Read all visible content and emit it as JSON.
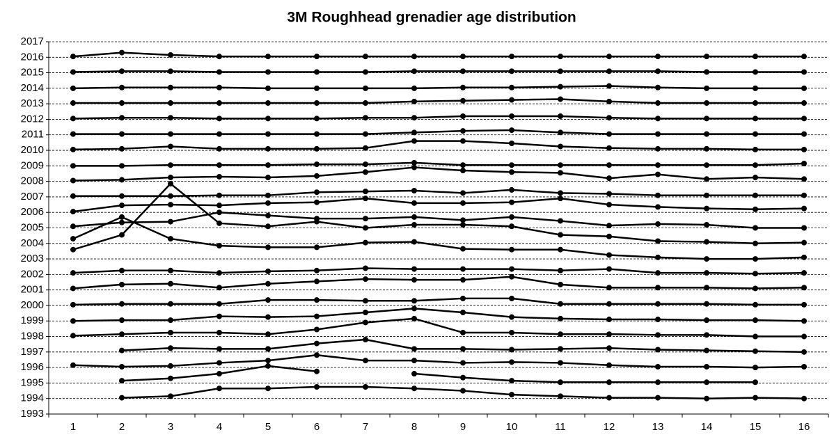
{
  "chart_data": {
    "type": "line",
    "title": "3M Roughhead grenadier age distribution",
    "color": "#000000",
    "grid": true,
    "x": [
      1,
      2,
      3,
      4,
      5,
      6,
      7,
      8,
      9,
      10,
      11,
      12,
      13,
      14,
      15,
      16
    ],
    "xlim": [
      0.5,
      16.5
    ],
    "xticks": [
      1,
      2,
      3,
      4,
      5,
      6,
      7,
      8,
      9,
      10,
      11,
      12,
      13,
      14,
      15,
      16
    ],
    "ylim": [
      1993,
      2017
    ],
    "yticks": [
      1993,
      1994,
      1995,
      1996,
      1997,
      1998,
      1999,
      2000,
      2001,
      2002,
      2003,
      2004,
      2005,
      2006,
      2007,
      2008,
      2009,
      2010,
      2011,
      2012,
      2013,
      2014,
      2015,
      2016,
      2017
    ],
    "series": [
      {
        "values": [
          null,
          1994.05,
          1994.15,
          1994.65,
          1994.65,
          1994.75,
          1994.75,
          1994.65,
          1994.5,
          1994.25,
          1994.15,
          1994.05,
          1994.05,
          1994.0,
          1994.05,
          1994.0
        ]
      },
      {
        "values": [
          null,
          1995.15,
          1995.3,
          1995.6,
          1996.1,
          1995.75,
          null,
          1995.6,
          1995.35,
          1995.15,
          1995.05,
          1995.05,
          1995.05,
          1995.05,
          1995.05,
          null
        ]
      },
      {
        "values": [
          1996.15,
          1996.05,
          1996.1,
          1996.3,
          1996.45,
          1996.8,
          1996.45,
          1996.45,
          1996.3,
          1996.35,
          1996.3,
          1996.15,
          1996.05,
          1996.05,
          1996.0,
          1996.05
        ]
      },
      {
        "values": [
          null,
          1997.1,
          1997.25,
          1997.2,
          1997.2,
          1997.55,
          1997.8,
          1997.2,
          1997.2,
          1997.15,
          1997.2,
          1997.25,
          1997.15,
          1997.1,
          1997.05,
          1997.0
        ]
      },
      {
        "values": [
          1998.05,
          1998.15,
          1998.25,
          1998.25,
          1998.15,
          1998.45,
          1998.9,
          1999.15,
          1998.25,
          1998.25,
          1998.15,
          1998.15,
          1998.1,
          1998.1,
          1998.0,
          1998.0
        ]
      },
      {
        "values": [
          1999.0,
          1999.05,
          1999.05,
          1999.3,
          1999.25,
          1999.3,
          1999.55,
          1999.8,
          1999.55,
          1999.25,
          1999.15,
          1999.1,
          1999.1,
          1999.05,
          1999.05,
          1999.0
        ]
      },
      {
        "values": [
          2000.05,
          2000.1,
          2000.1,
          2000.1,
          2000.35,
          2000.35,
          2000.3,
          2000.3,
          2000.45,
          2000.45,
          2000.1,
          2000.1,
          2000.1,
          2000.1,
          2000.05,
          2000.05
        ]
      },
      {
        "values": [
          2001.1,
          2001.35,
          2001.4,
          2001.15,
          2001.4,
          2001.55,
          2001.7,
          2001.65,
          2001.65,
          2001.85,
          2001.35,
          2001.15,
          2001.15,
          2001.15,
          2001.1,
          2001.15
        ]
      },
      {
        "values": [
          2002.1,
          2002.25,
          2002.25,
          2002.1,
          2002.2,
          2002.25,
          2002.4,
          2002.35,
          2002.35,
          2002.35,
          2002.25,
          2002.35,
          2002.1,
          2002.1,
          2002.05,
          2002.1
        ]
      },
      {
        "values": [
          2004.3,
          2005.7,
          2004.3,
          2003.85,
          2003.75,
          2003.75,
          2004.05,
          2004.1,
          2003.65,
          2003.6,
          2003.6,
          2003.25,
          2003.1,
          2003.0,
          2003.0,
          2003.1
        ]
      },
      {
        "values": [
          2003.6,
          2004.55,
          2007.85,
          2005.3,
          2005.1,
          2005.4,
          2005.0,
          2005.2,
          2005.2,
          2005.1,
          2004.55,
          2004.45,
          2004.15,
          2004.1,
          2004.0,
          2004.05
        ]
      },
      {
        "values": [
          2005.1,
          2005.35,
          2005.4,
          2006.0,
          2005.8,
          2005.6,
          2005.6,
          2005.7,
          2005.5,
          2005.7,
          2005.45,
          2005.15,
          2005.25,
          2005.2,
          2005.0,
          2005.0
        ]
      },
      {
        "values": [
          2006.05,
          2006.45,
          2006.5,
          2006.45,
          2006.6,
          2006.65,
          2006.9,
          2006.6,
          2006.6,
          2006.65,
          2006.9,
          2006.5,
          2006.35,
          2006.25,
          2006.2,
          2006.25
        ]
      },
      {
        "values": [
          2007.05,
          2007.05,
          2007.05,
          2007.1,
          2007.1,
          2007.3,
          2007.35,
          2007.4,
          2007.25,
          2007.45,
          2007.25,
          2007.2,
          2007.1,
          2007.1,
          2007.1,
          2007.1
        ]
      },
      {
        "values": [
          2008.05,
          2008.1,
          2008.25,
          2008.3,
          2008.25,
          2008.35,
          2008.6,
          2008.9,
          2008.7,
          2008.6,
          2008.55,
          2008.2,
          2008.45,
          2008.15,
          2008.25,
          2008.15
        ]
      },
      {
        "values": [
          2009.0,
          2009.0,
          2009.05,
          2009.05,
          2009.05,
          2009.1,
          2009.1,
          2009.2,
          2009.05,
          2009.05,
          2009.05,
          2009.05,
          2009.05,
          2009.05,
          2009.05,
          2009.15
        ]
      },
      {
        "values": [
          2010.05,
          2010.1,
          2010.25,
          2010.1,
          2010.1,
          2010.1,
          2010.15,
          2010.6,
          2010.6,
          2010.45,
          2010.25,
          2010.15,
          2010.1,
          2010.1,
          2010.05,
          2010.05
        ]
      },
      {
        "values": [
          2011.05,
          2011.05,
          2011.05,
          2011.05,
          2011.05,
          2011.05,
          2011.05,
          2011.15,
          2011.25,
          2011.3,
          2011.15,
          2011.05,
          2011.05,
          2011.05,
          2011.05,
          2011.05
        ]
      },
      {
        "values": [
          2012.05,
          2012.1,
          2012.1,
          2012.05,
          2012.05,
          2012.05,
          2012.1,
          2012.1,
          2012.2,
          2012.2,
          2012.2,
          2012.1,
          2012.05,
          2012.05,
          2012.05,
          2012.05
        ]
      },
      {
        "values": [
          2013.05,
          2013.05,
          2013.05,
          2013.05,
          2013.05,
          2013.05,
          2013.05,
          2013.15,
          2013.2,
          2013.25,
          2013.3,
          2013.15,
          2013.05,
          2013.05,
          2013.05,
          2013.05
        ]
      },
      {
        "values": [
          2014.0,
          2014.05,
          2014.05,
          2014.05,
          2014.0,
          2014.0,
          2014.0,
          2014.0,
          2014.05,
          2014.05,
          2014.1,
          2014.15,
          2014.05,
          2014.0,
          2014.0,
          2014.0
        ]
      },
      {
        "values": [
          2015.05,
          2015.1,
          2015.1,
          2015.05,
          2015.05,
          2015.05,
          2015.05,
          2015.1,
          2015.1,
          2015.1,
          2015.1,
          2015.1,
          2015.1,
          2015.05,
          2015.05,
          2015.05
        ]
      },
      {
        "values": [
          2016.05,
          2016.3,
          2016.15,
          2016.05,
          2016.05,
          2016.05,
          2016.05,
          2016.05,
          2016.05,
          2016.05,
          2016.05,
          2016.05,
          2016.05,
          2016.05,
          2016.05,
          2016.05
        ]
      }
    ]
  }
}
